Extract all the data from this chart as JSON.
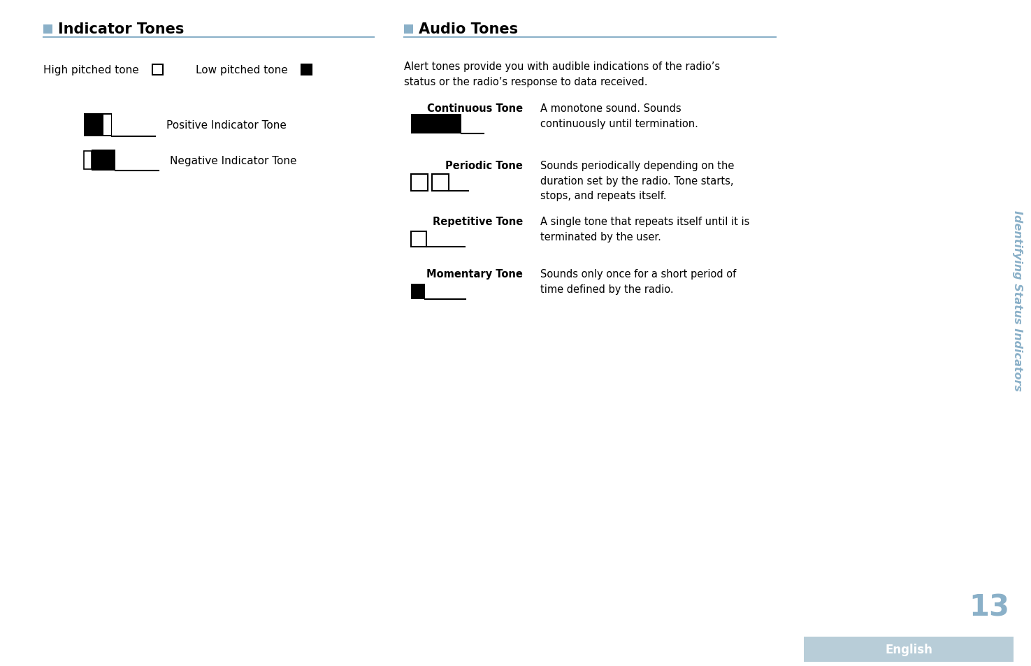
{
  "bg_color": "#ffffff",
  "sidebar_text": "Identifying Status Indicators",
  "sidebar_text_color": "#8ab0c8",
  "page_number": "13",
  "page_number_color": "#8ab0c8",
  "footer_text": "English",
  "footer_bg": "#b8cdd8",
  "footer_text_color": "#ffffff",
  "section1_title": "Indicator Tones",
  "section2_title": "Audio Tones",
  "section_title_color": "#000000",
  "section_title_fontsize": 15,
  "header_square_color": "#8ab0c8",
  "divider_color": "#8ab0c8",
  "body_color": "#000000",
  "high_pitched_label": "High pitched tone",
  "low_pitched_label": "Low pitched tone",
  "positive_label": "Positive Indicator Tone",
  "negative_label": "Negative Indicator Tone",
  "alert_text": "Alert tones provide you with audible indications of the radio’s\nstatus or the radio’s response to data received.",
  "tones": [
    {
      "name": "Continuous Tone",
      "desc": "A monotone sound. Sounds\ncontinuously until termination.",
      "type": "continuous"
    },
    {
      "name": "Periodic Tone",
      "desc": "Sounds periodically depending on the\nduration set by the radio. Tone starts,\nstops, and repeats itself.",
      "type": "periodic"
    },
    {
      "name": "Repetitive Tone",
      "desc": "A single tone that repeats itself until it is\nterminated by the user.",
      "type": "repetitive"
    },
    {
      "name": "Momentary Tone",
      "desc": "Sounds only once for a short period of\ntime defined by the radio.",
      "type": "momentary"
    }
  ]
}
